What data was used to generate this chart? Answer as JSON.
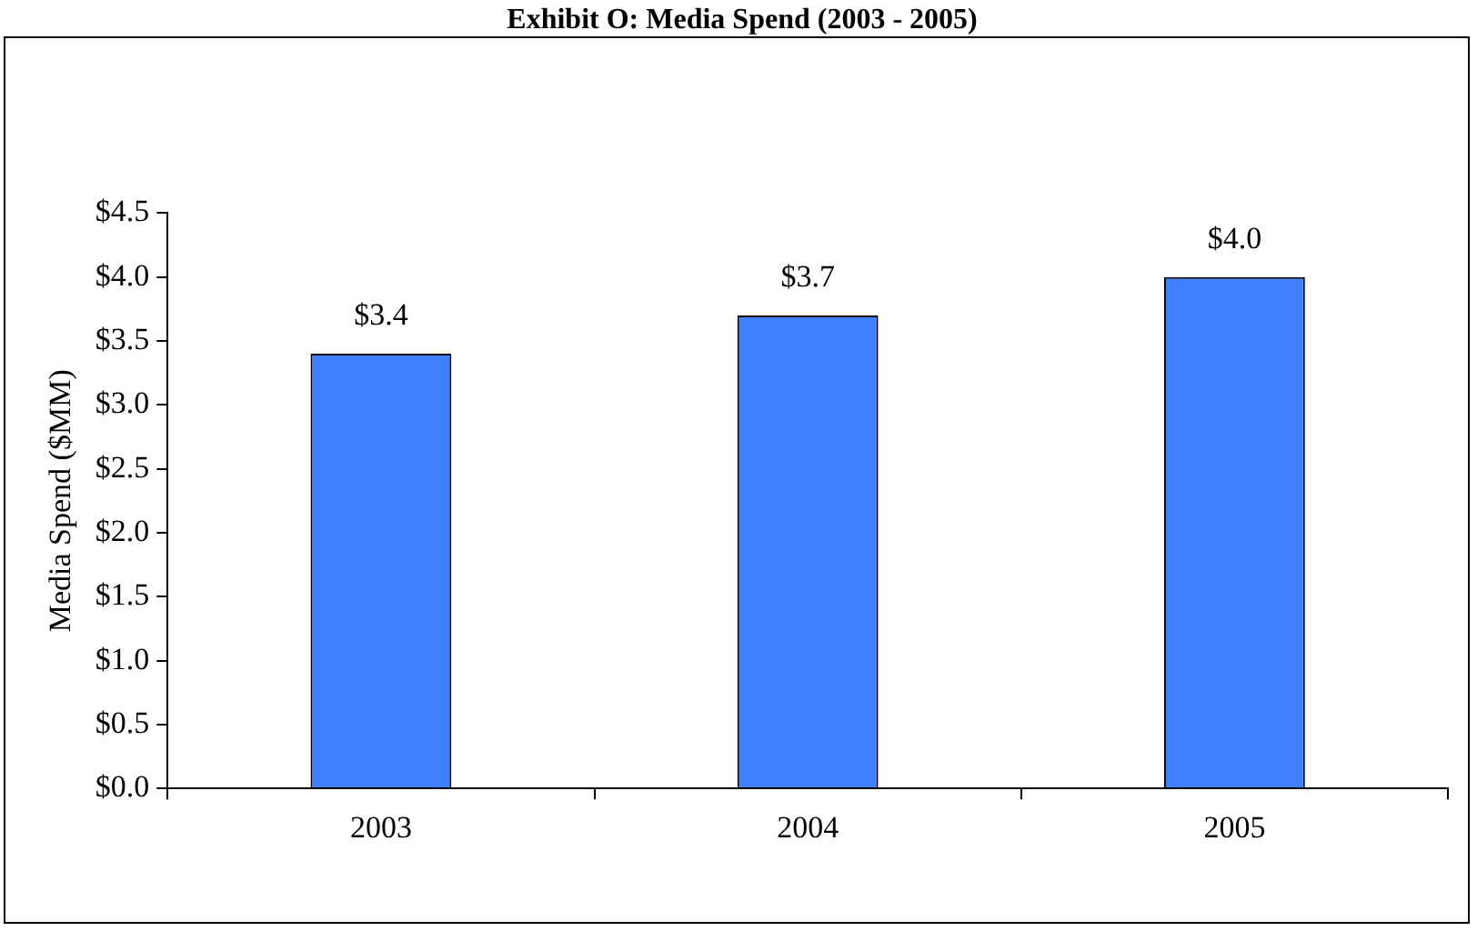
{
  "chart_data": {
    "type": "bar",
    "title": "Exhibit O: Media Spend (2003 - 2005)",
    "ylabel": "Media Spend ($MM)",
    "categories": [
      "2003",
      "2004",
      "2005"
    ],
    "values": [
      3.4,
      3.7,
      4.0
    ],
    "color": "#4080ff",
    "value_labels": [
      "$3.4",
      "$3.7",
      "$4.0"
    ],
    "ylim": [
      0,
      4.5
    ],
    "yticks": [
      {
        "value": 0,
        "label": "$0.0"
      },
      {
        "value": 0.5,
        "label": "$0.5"
      },
      {
        "value": 1,
        "label": "$1.0"
      },
      {
        "value": 1.5,
        "label": "$1.5"
      },
      {
        "value": 2,
        "label": "$2.0"
      },
      {
        "value": 2.5,
        "label": "$2.5"
      },
      {
        "value": 3,
        "label": "$3.0"
      },
      {
        "value": 3.5,
        "label": "$3.5"
      },
      {
        "value": 4,
        "label": "$4.0"
      },
      {
        "value": 4.5,
        "label": "$4.5"
      }
    ],
    "grid": false,
    "legend": false
  }
}
